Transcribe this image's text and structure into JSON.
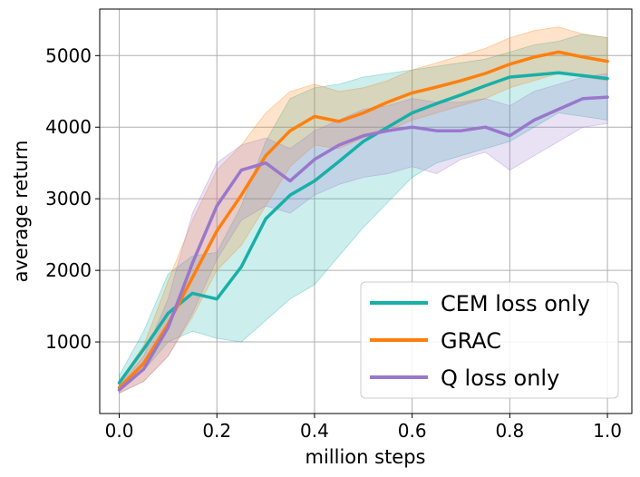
{
  "chart_data": {
    "type": "line",
    "title": "",
    "xlabel": "million steps",
    "ylabel": "average return",
    "xlim": [
      -0.04,
      1.05
    ],
    "ylim": [
      0,
      5650
    ],
    "x_ticks": [
      0.0,
      0.2,
      0.4,
      0.6,
      0.8,
      1.0
    ],
    "x_tick_labels": [
      "0.0",
      "0.2",
      "0.4",
      "0.6",
      "0.8",
      "1.0"
    ],
    "y_ticks": [
      1000,
      2000,
      3000,
      4000,
      5000
    ],
    "y_tick_labels": [
      "1000",
      "2000",
      "3000",
      "4000",
      "5000"
    ],
    "grid": true,
    "legend_position": "bottom-right",
    "x": [
      0.0,
      0.05,
      0.1,
      0.15,
      0.2,
      0.25,
      0.3,
      0.35,
      0.4,
      0.45,
      0.5,
      0.55,
      0.6,
      0.65,
      0.7,
      0.75,
      0.8,
      0.85,
      0.9,
      0.95,
      1.0
    ],
    "series": [
      {
        "name": "CEM loss only",
        "color": "#17b0a8",
        "values": [
          430,
          900,
          1400,
          1680,
          1600,
          2050,
          2720,
          3050,
          3250,
          3520,
          3800,
          4000,
          4200,
          4330,
          4450,
          4580,
          4700,
          4730,
          4760,
          4720,
          4680
        ],
        "lower": [
          330,
          600,
          1000,
          1150,
          1050,
          1000,
          1300,
          1600,
          1800,
          2200,
          2600,
          2950,
          3300,
          3500,
          3600,
          3700,
          3800,
          4000,
          4200,
          4150,
          4100
        ],
        "upper": [
          530,
          1150,
          1950,
          2200,
          2250,
          2900,
          3800,
          4400,
          4550,
          4600,
          4700,
          4750,
          4800,
          4850,
          4900,
          4950,
          5050,
          5150,
          5200,
          5300,
          5250
        ]
      },
      {
        "name": "GRAC",
        "color": "#ff7f0e",
        "values": [
          360,
          700,
          1250,
          1900,
          2550,
          3050,
          3600,
          3950,
          4150,
          4080,
          4200,
          4350,
          4480,
          4560,
          4650,
          4750,
          4880,
          4980,
          5050,
          4980,
          4920
        ],
        "lower": [
          290,
          450,
          800,
          1350,
          2000,
          2350,
          2900,
          3450,
          3750,
          3700,
          3850,
          3950,
          4100,
          4200,
          4300,
          4400,
          4550,
          4650,
          4750,
          4700,
          4650
        ],
        "upper": [
          450,
          950,
          1850,
          2700,
          3400,
          3750,
          4200,
          4500,
          4600,
          4500,
          4550,
          4650,
          4800,
          4900,
          5000,
          5100,
          5250,
          5350,
          5400,
          5300,
          5250
        ]
      },
      {
        "name": "Q loss only",
        "color": "#9a77cc",
        "values": [
          330,
          620,
          1200,
          2100,
          2900,
          3400,
          3500,
          3250,
          3550,
          3750,
          3880,
          3950,
          4000,
          3950,
          3950,
          4000,
          3880,
          4100,
          4250,
          4400,
          4420
        ],
        "lower": [
          280,
          450,
          800,
          1400,
          2150,
          2700,
          2900,
          2800,
          3050,
          3200,
          3300,
          3350,
          3450,
          3350,
          3550,
          3650,
          3400,
          3600,
          3800,
          4000,
          4050
        ],
        "upper": [
          390,
          800,
          1600,
          2800,
          3500,
          3750,
          3850,
          3700,
          3950,
          4100,
          4250,
          4300,
          4400,
          4350,
          4350,
          4400,
          4300,
          4500,
          4600,
          4700,
          4750
        ]
      }
    ]
  }
}
